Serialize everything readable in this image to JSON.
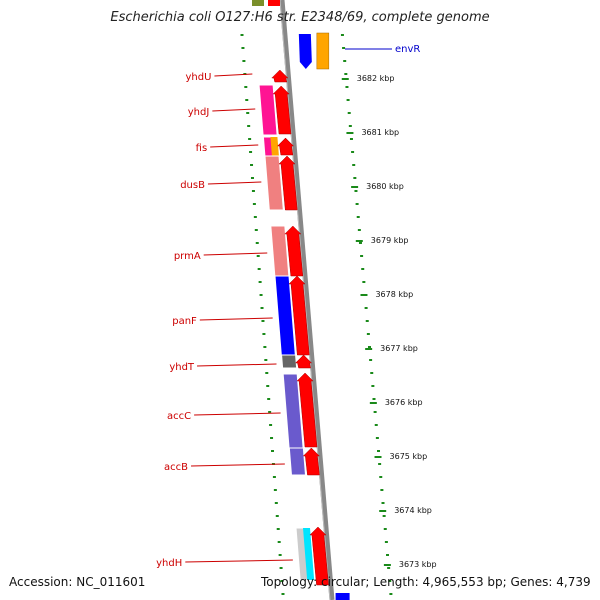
{
  "title": "Escherichia coli O127:H6 str. E2348/69, complete genome",
  "footer": {
    "accession": "Accession: NC_011601",
    "summary": "Topology: circular; Length: 4,965,553 bp; Genes: 4,739"
  },
  "colors": {
    "backbone": "#888888",
    "tick": "#1a8a1a",
    "gene_label": "#cc0000",
    "envR_label": "#0000cc",
    "forward_strand": "#ff0000",
    "cog_pink": "#ff1493",
    "cog_salmon": "#f08080",
    "cog_blue": "#0000ff",
    "cog_purple": "#6a5acd",
    "cog_orange": "#ffa500",
    "cog_cyan": "#00e5ff",
    "cog_grey": "#666666"
  },
  "gene_labels": [
    "yhdU",
    "yhdJ",
    "fis",
    "dusB",
    "prmA",
    "panF",
    "yhdT",
    "accC",
    "accB",
    "yhdH"
  ],
  "envR_label": "envR",
  "position_labels": [
    "3682 kbp",
    "3681 kbp",
    "3680 kbp",
    "3679 kbp",
    "3678 kbp",
    "3677 kbp",
    "3676 kbp",
    "3675 kbp",
    "3674 kbp",
    "3673 kbp"
  ]
}
